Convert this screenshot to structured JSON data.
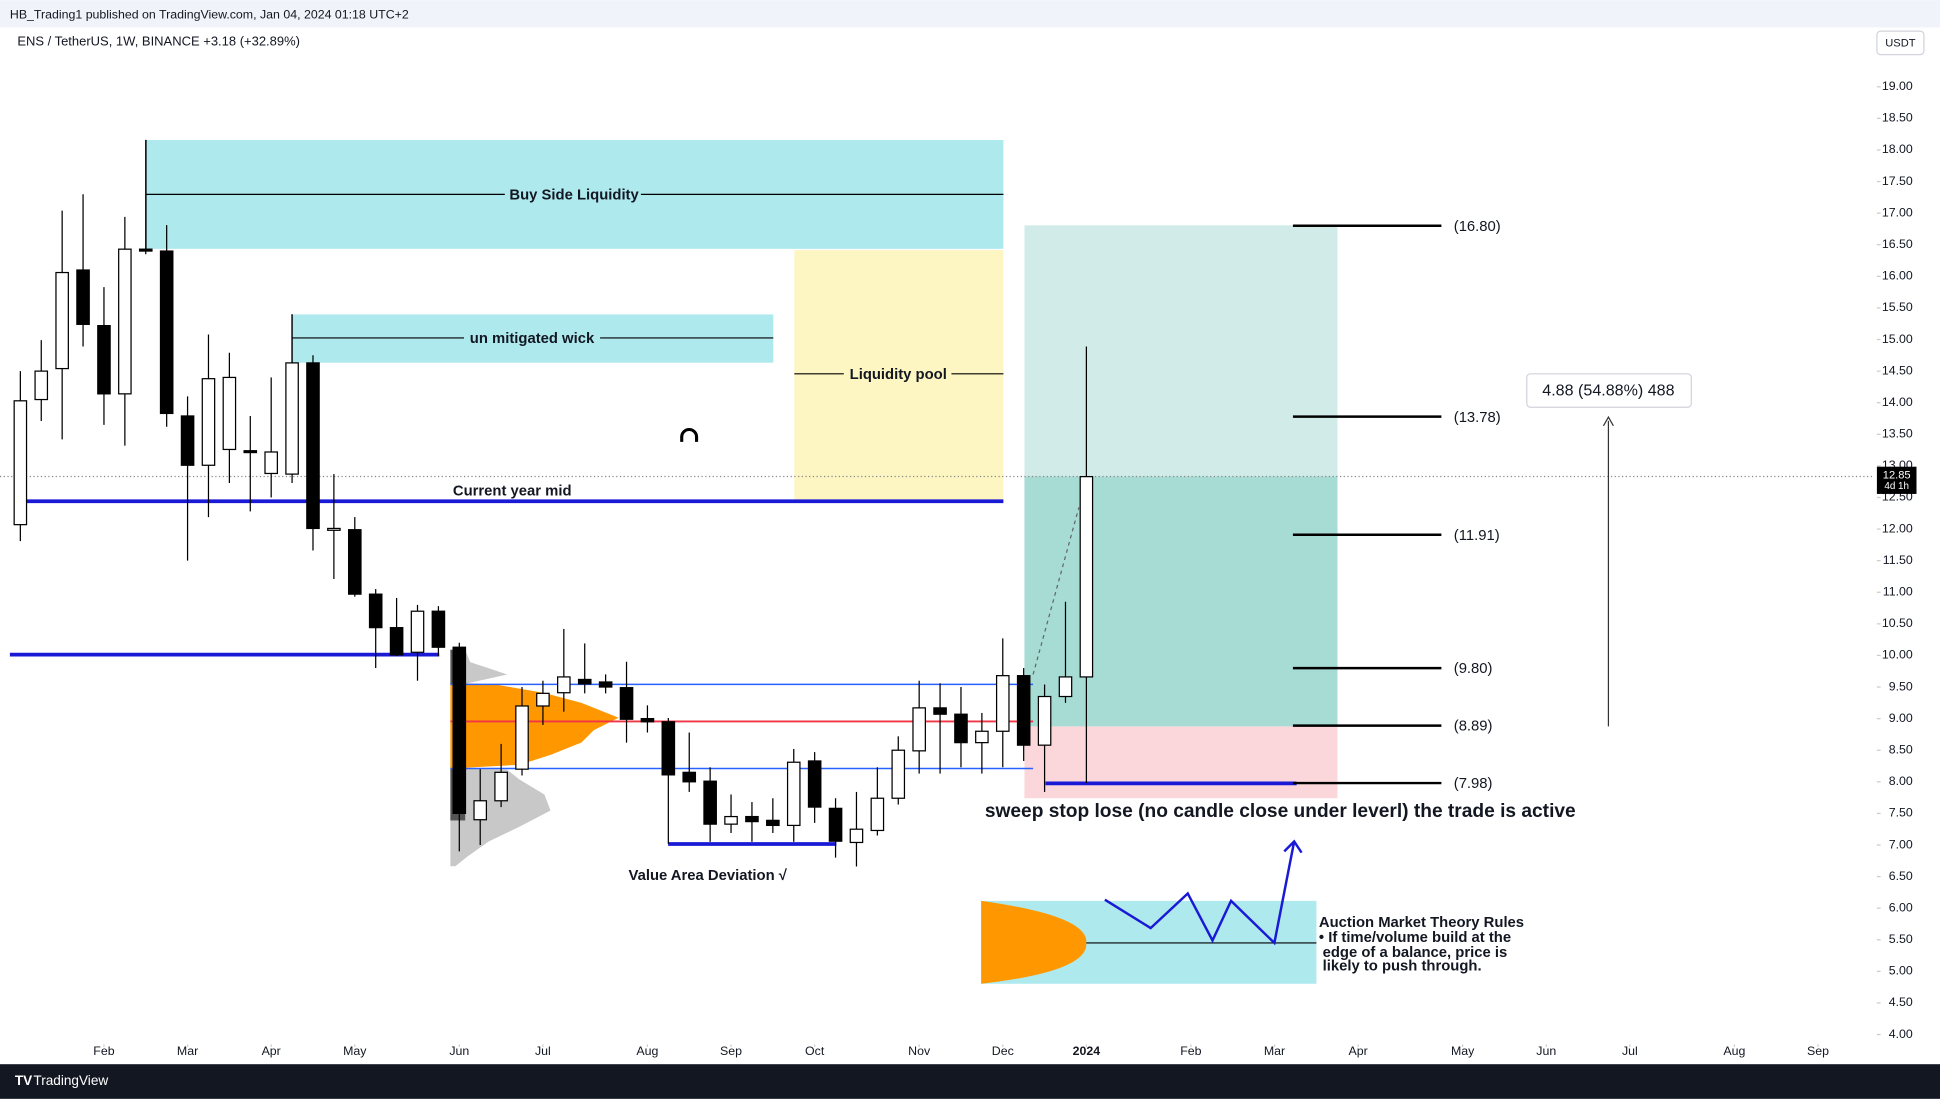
{
  "chart_data": {
    "type": "candlestick",
    "publisher": "HB_Trading1 published on TradingView.com, Jan 04, 2024 01:18 UTC+2",
    "title": "ENS / TetherUS, 1W, BINANCE  +3.18 (+32.89%)",
    "currency": "USDT",
    "brand": "TradingView",
    "open": [
      12.07,
      14.05,
      14.54,
      16.1,
      15.22,
      14.14,
      16.43,
      16.4,
      13.79,
      13.01,
      13.26,
      13.24,
      12.88,
      12.87,
      14.63,
      12.01,
      11.99,
      10.97,
      10.44,
      10.05,
      10.7,
      10.13,
      7.4,
      7.7,
      8.2,
      9.2,
      9.41,
      9.62,
      9.58,
      9.49,
      9.0,
      8.95,
      8.15,
      8.01,
      7.33,
      7.45,
      7.39,
      7.31,
      8.33,
      7.58,
      7.04,
      7.23,
      7.74,
      8.49,
      9.17,
      9.07,
      8.62,
      8.8,
      9.68,
      8.58,
      9.35,
      9.66
    ],
    "high": [
      14.5,
      14.99,
      17.04,
      17.3,
      15.83,
      16.94,
      18.16,
      16.81,
      14.1,
      15.08,
      14.79,
      13.79,
      14.4,
      15.4,
      14.75,
      12.87,
      12.19,
      11.05,
      10.91,
      10.8,
      10.78,
      10.2,
      8.2,
      8.6,
      9.5,
      9.6,
      10.42,
      10.19,
      9.7,
      9.9,
      9.21,
      9.01,
      8.78,
      8.23,
      7.8,
      7.68,
      7.74,
      8.52,
      8.47,
      7.74,
      7.84,
      8.23,
      8.72,
      9.6,
      9.56,
      9.5,
      9.09,
      10.27,
      9.8,
      9.54,
      10.85,
      14.89
    ],
    "low": [
      11.81,
      13.71,
      13.42,
      14.89,
      13.65,
      13.32,
      16.35,
      13.62,
      11.5,
      12.19,
      12.73,
      12.28,
      12.5,
      12.73,
      11.66,
      11.21,
      10.93,
      9.8,
      9.99,
      9.6,
      9.99,
      6.9,
      7.0,
      7.6,
      8.1,
      8.9,
      9.11,
      9.4,
      9.4,
      8.62,
      8.78,
      7.02,
      7.84,
      7.05,
      7.19,
      7.05,
      7.19,
      7.05,
      7.35,
      6.8,
      6.66,
      7.15,
      7.64,
      8.13,
      8.13,
      8.23,
      8.13,
      8.23,
      8.33,
      7.84,
      9.25,
      7.98
    ],
    "close": [
      14.03,
      14.5,
      16.06,
      15.24,
      14.14,
      16.43,
      16.4,
      13.83,
      13.01,
      14.38,
      14.4,
      13.22,
      13.22,
      14.63,
      12.01,
      12.01,
      10.97,
      10.44,
      10.01,
      10.7,
      10.13,
      7.5,
      7.7,
      8.15,
      9.2,
      9.4,
      9.66,
      9.55,
      9.5,
      8.99,
      8.95,
      8.11,
      8.0,
      7.33,
      7.45,
      7.37,
      7.31,
      8.31,
      7.6,
      7.06,
      7.25,
      7.74,
      8.5,
      9.17,
      9.07,
      8.62,
      8.8,
      9.68,
      8.58,
      9.35,
      9.66,
      12.83
    ],
    "xlim": [
      -0.5,
      88.7
    ],
    "xticks": [
      {
        "value": 4,
        "label": "Feb"
      },
      {
        "value": 8,
        "label": "Mar"
      },
      {
        "value": 12,
        "label": "Apr"
      },
      {
        "value": 16,
        "label": "May"
      },
      {
        "value": 21,
        "label": "Jun"
      },
      {
        "value": 25,
        "label": "Jul"
      },
      {
        "value": 30,
        "label": "Aug"
      },
      {
        "value": 34,
        "label": "Sep"
      },
      {
        "value": 38,
        "label": "Oct"
      },
      {
        "value": 43,
        "label": "Nov"
      },
      {
        "value": 47,
        "label": "Dec"
      },
      {
        "value": 51,
        "label": "2024"
      },
      {
        "value": 56,
        "label": "Feb"
      },
      {
        "value": 60,
        "label": "Mar"
      },
      {
        "value": 64,
        "label": "Apr"
      },
      {
        "value": 69,
        "label": "May"
      },
      {
        "value": 73,
        "label": "Jun"
      },
      {
        "value": 77,
        "label": "Jul"
      },
      {
        "value": 82,
        "label": "Aug"
      },
      {
        "value": 86,
        "label": "Sep"
      }
    ],
    "ylim": [
      3.57,
      19.94
    ],
    "yticks": [
      {
        "value": 4,
        "label": "4.00"
      },
      {
        "value": 4.5,
        "label": "4.50"
      },
      {
        "value": 5,
        "label": "5.00"
      },
      {
        "value": 5.5,
        "label": "5.50"
      },
      {
        "value": 6,
        "label": "6.00"
      },
      {
        "value": 6.5,
        "label": "6.50"
      },
      {
        "value": 7,
        "label": "7.00"
      },
      {
        "value": 7.5,
        "label": "7.50"
      },
      {
        "value": 8,
        "label": "8.00"
      },
      {
        "value": 8.5,
        "label": "8.50"
      },
      {
        "value": 9,
        "label": "9.00"
      },
      {
        "value": 9.5,
        "label": "9.50"
      },
      {
        "value": 10,
        "label": "10.00"
      },
      {
        "value": 10.5,
        "label": "10.50"
      },
      {
        "value": 11,
        "label": "11.00"
      },
      {
        "value": 11.5,
        "label": "11.50"
      },
      {
        "value": 12,
        "label": "12.00"
      },
      {
        "value": 12.5,
        "label": "12.50"
      },
      {
        "value": 13,
        "label": "13.00"
      },
      {
        "value": 13.5,
        "label": "13.50"
      },
      {
        "value": 14,
        "label": "14.00"
      },
      {
        "value": 14.5,
        "label": "14.50"
      },
      {
        "value": 15,
        "label": "15.00"
      },
      {
        "value": 15.5,
        "label": "15.50"
      },
      {
        "value": 16,
        "label": "16.00"
      },
      {
        "value": 16.5,
        "label": "16.50"
      },
      {
        "value": 17,
        "label": "17.00"
      },
      {
        "value": 17.5,
        "label": "17.50"
      },
      {
        "value": 18,
        "label": "18.00"
      },
      {
        "value": 18.5,
        "label": "18.50"
      },
      {
        "value": 19,
        "label": "19.00"
      }
    ],
    "current_price": {
      "value": 12.85,
      "label": "12.85"
    },
    "countdown": "4d 1h",
    "targets": [
      {
        "value": 16.8,
        "label": "(16.80)"
      },
      {
        "value": 13.78,
        "label": "(13.78)"
      },
      {
        "value": 11.91,
        "label": "(11.91)"
      },
      {
        "value": 9.8,
        "label": "(9.80)"
      },
      {
        "value": 8.89,
        "label": "(8.89)"
      },
      {
        "value": 7.98,
        "label": "(7.98)"
      }
    ],
    "measure": "4.88 (54.88%) 488",
    "up_color": "#ffffff",
    "down_color": "#000000"
  },
  "annotations": {
    "buy_side": "Buy Side Liquidity",
    "wick": "un mitigated wick",
    "pool": "Liquidity pool",
    "year_mid": "Current year mid",
    "vad": "Value Area Deviation √",
    "sweep": "sweep stop lose (no candle close under leverl) the trade is active",
    "amt_title": "Auction Market Theory Rules",
    "amt_1": "• If time/volume build at the",
    "amt_2": "edge of a balance, price is",
    "amt_3": "likely to push through."
  }
}
